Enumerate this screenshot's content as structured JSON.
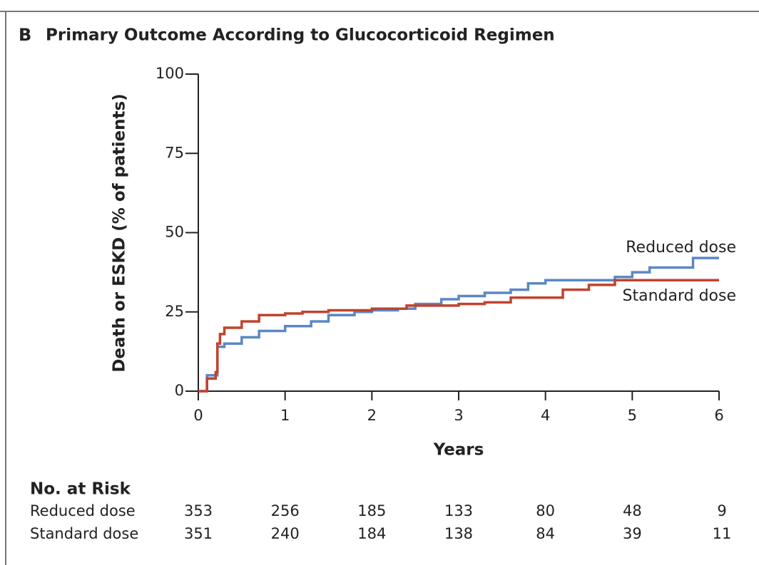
{
  "chart_data": {
    "type": "step",
    "panel": "B",
    "title": "Primary Outcome According to Glucocorticoid Regimen",
    "ylabel": "Death or ESKD (% of patients)",
    "xlabel": "Years",
    "xlim": [
      0,
      6
    ],
    "ylim": [
      0,
      100
    ],
    "xticks": [
      0,
      1,
      2,
      3,
      4,
      5,
      6
    ],
    "yticks": [
      0,
      25,
      50,
      75,
      100
    ],
    "series": [
      {
        "name": "Reduced dose",
        "color": "#5b87c5",
        "x": [
          0,
          0.1,
          0.22,
          0.3,
          0.5,
          0.7,
          1.0,
          1.3,
          1.5,
          1.8,
          2.0,
          2.3,
          2.5,
          2.8,
          3.0,
          3.3,
          3.6,
          3.8,
          4.0,
          4.8,
          5.0,
          5.2,
          5.7,
          6.0
        ],
        "values": [
          0,
          5,
          14,
          15,
          17,
          19,
          20.5,
          22,
          24,
          25,
          25.5,
          26,
          27.5,
          29,
          30,
          31,
          32,
          34,
          35,
          36,
          37.5,
          39,
          42,
          42
        ]
      },
      {
        "name": "Standard dose",
        "color": "#c0432d",
        "x": [
          0,
          0.1,
          0.2,
          0.22,
          0.25,
          0.3,
          0.5,
          0.7,
          1.0,
          1.2,
          1.5,
          2.0,
          2.4,
          3.0,
          3.3,
          3.6,
          4.2,
          4.5,
          4.8,
          6.0
        ],
        "values": [
          0,
          4,
          6,
          15,
          18,
          20,
          22,
          24,
          24.5,
          25,
          25.5,
          26,
          27,
          27.5,
          28,
          29.5,
          32,
          33.5,
          35,
          35
        ]
      }
    ],
    "risk_table": {
      "title": "No. at Risk",
      "rows": [
        {
          "label": "Reduced dose",
          "values": [
            353,
            256,
            185,
            133,
            80,
            48,
            9
          ]
        },
        {
          "label": "Standard dose",
          "values": [
            351,
            240,
            184,
            138,
            84,
            39,
            11
          ]
        }
      ]
    }
  }
}
